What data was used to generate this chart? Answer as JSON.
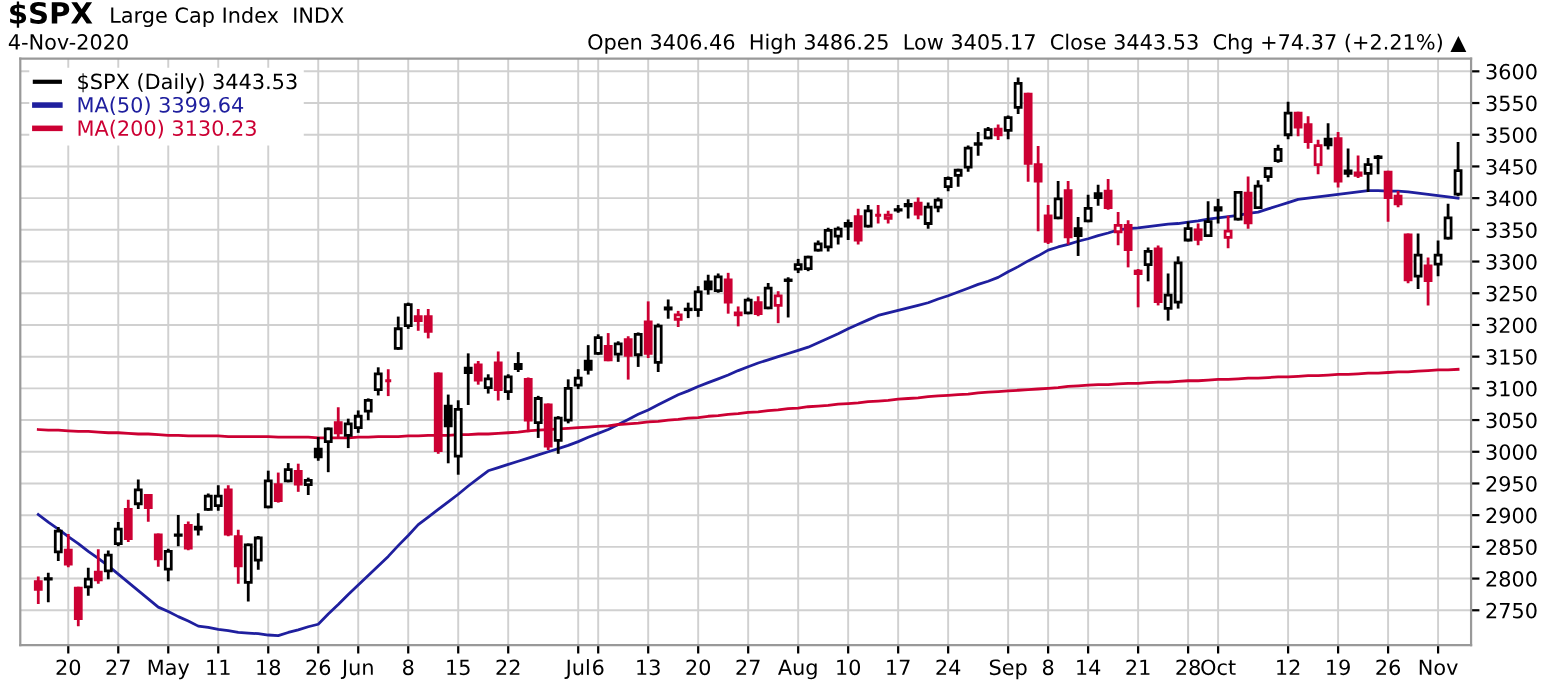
{
  "chart_data": {
    "type": "candlestick",
    "title": "$SPX",
    "subtitle": "Large Cap Index  INDX",
    "annotations": [
      "4-Nov-2020",
      "Open 3406.46  High 3486.25  Low 3405.17  Close 3443.53  Chg +74.37 (+2.21%) ▲"
    ],
    "ylim": [
      2695,
      3620
    ],
    "yticks": [
      2750,
      2800,
      2850,
      2900,
      2950,
      3000,
      3050,
      3100,
      3150,
      3200,
      3250,
      3300,
      3350,
      3400,
      3450,
      3500,
      3550,
      3600
    ],
    "categories": [
      null,
      null,
      null,
      "20",
      null,
      null,
      null,
      null,
      "27",
      null,
      null,
      null,
      null,
      "May",
      null,
      null,
      null,
      null,
      "11",
      null,
      null,
      null,
      null,
      "18",
      null,
      null,
      null,
      null,
      "26",
      null,
      null,
      null,
      "Jun",
      null,
      null,
      null,
      null,
      "8",
      null,
      null,
      null,
      null,
      "15",
      null,
      null,
      null,
      null,
      "22",
      null,
      null,
      null,
      null,
      null,
      null,
      "Jul",
      null,
      "6",
      null,
      null,
      null,
      null,
      "13",
      null,
      null,
      null,
      null,
      "20",
      null,
      null,
      null,
      null,
      "27",
      null,
      null,
      null,
      null,
      "Aug",
      null,
      null,
      null,
      null,
      "10",
      null,
      null,
      null,
      null,
      "17",
      null,
      null,
      null,
      null,
      "24",
      null,
      null,
      null,
      null,
      null,
      "Sep",
      null,
      null,
      null,
      "8",
      null,
      null,
      null,
      "14",
      null,
      null,
      null,
      null,
      "21",
      null,
      null,
      null,
      null,
      "28",
      null,
      null,
      "Oct",
      null,
      null,
      null,
      null,
      null,
      null,
      "12",
      null,
      null,
      null,
      null,
      "19",
      null,
      null,
      null,
      null,
      "26",
      null,
      null,
      null,
      null,
      "Nov",
      null,
      null
    ],
    "grid": true,
    "legend": "top left",
    "series": [
      {
        "name": "$SPX (Daily) 3443.53",
        "color": "#000000",
        "ohlc": [
          [
            2795,
            2801,
            2762,
            2783
          ],
          [
            2799,
            2807,
            2765,
            2800
          ],
          [
            2842,
            2879,
            2830,
            2875
          ],
          [
            2845,
            2868,
            2820,
            2823
          ],
          [
            2785,
            2785,
            2727,
            2737
          ],
          [
            2787,
            2815,
            2775,
            2799
          ],
          [
            2810,
            2844,
            2794,
            2798
          ],
          [
            2812,
            2842,
            2801,
            2837
          ],
          [
            2855,
            2887,
            2853,
            2878
          ],
          [
            2909,
            2922,
            2860,
            2863
          ],
          [
            2918,
            2954,
            2912,
            2940
          ],
          [
            2931,
            2931,
            2892,
            2912
          ],
          [
            2869,
            2869,
            2821,
            2831
          ],
          [
            2815,
            2845,
            2798,
            2843
          ],
          [
            2869,
            2898,
            2853,
            2868
          ],
          [
            2884,
            2888,
            2847,
            2848
          ],
          [
            2878,
            2901,
            2870,
            2881
          ],
          [
            2909,
            2932,
            2909,
            2930
          ],
          [
            2915,
            2945,
            2909,
            2930
          ],
          [
            2940,
            2945,
            2869,
            2870
          ],
          [
            2866,
            2875,
            2794,
            2820
          ],
          [
            2794,
            2853,
            2766,
            2853
          ],
          [
            2829,
            2865,
            2816,
            2864
          ],
          [
            2913,
            2968,
            2913,
            2954
          ],
          [
            2948,
            2965,
            2922,
            2923
          ],
          [
            2954,
            2980,
            2954,
            2972
          ],
          [
            2969,
            2979,
            2939,
            2949
          ],
          [
            2948,
            2957,
            2934,
            2955
          ],
          [
            3004,
            3021,
            2988,
            2992
          ],
          [
            3016,
            3036,
            2970,
            3036
          ],
          [
            3046,
            3068,
            3024,
            3030
          ],
          [
            3026,
            3050,
            3008,
            3044
          ],
          [
            3038,
            3063,
            3032,
            3056
          ],
          [
            3064,
            3082,
            3052,
            3081
          ],
          [
            3098,
            3131,
            3091,
            3123
          ],
          [
            3112,
            3128,
            3090,
            3112
          ],
          [
            3163,
            3211,
            3163,
            3194
          ],
          [
            3199,
            3233,
            3196,
            3232
          ],
          [
            3213,
            3223,
            3193,
            3207
          ],
          [
            3213,
            3223,
            3181,
            3190
          ],
          [
            3123,
            3123,
            2999,
            3002
          ],
          [
            3072,
            3088,
            2984,
            3041
          ],
          [
            2993,
            3079,
            2966,
            3067
          ],
          [
            3132,
            3153,
            3076,
            3125
          ],
          [
            3137,
            3141,
            3108,
            3113
          ],
          [
            3101,
            3120,
            3094,
            3115
          ],
          [
            3140,
            3156,
            3083,
            3098
          ],
          [
            3095,
            3120,
            3084,
            3118
          ],
          [
            3138,
            3155,
            3128,
            3131
          ],
          [
            3114,
            3115,
            3033,
            3050
          ],
          [
            3046,
            3086,
            3024,
            3084
          ],
          [
            3074,
            3074,
            3005,
            3009
          ],
          [
            3018,
            3054,
            2999,
            3053
          ],
          [
            3050,
            3112,
            3047,
            3100
          ],
          [
            3105,
            3128,
            3101,
            3116
          ],
          [
            3143,
            3166,
            3124,
            3130
          ],
          [
            3155,
            3183,
            3155,
            3180
          ],
          [
            3166,
            3185,
            3145,
            3145
          ],
          [
            3154,
            3172,
            3144,
            3170
          ],
          [
            3177,
            3180,
            3116,
            3152
          ],
          [
            3153,
            3186,
            3136,
            3185
          ],
          [
            3205,
            3235,
            3150,
            3155
          ],
          [
            3141,
            3200,
            3128,
            3198
          ],
          [
            3225,
            3238,
            3212,
            3227
          ],
          [
            3209,
            3220,
            3199,
            3216
          ],
          [
            3224,
            3233,
            3213,
            3225
          ],
          [
            3224,
            3259,
            3215,
            3252
          ],
          [
            3268,
            3277,
            3250,
            3257
          ],
          [
            3254,
            3279,
            3253,
            3276
          ],
          [
            3271,
            3280,
            3220,
            3236
          ],
          [
            3219,
            3227,
            3200,
            3216
          ],
          [
            3219,
            3241,
            3219,
            3239
          ],
          [
            3235,
            3243,
            3216,
            3218
          ],
          [
            3227,
            3264,
            3227,
            3258
          ],
          [
            3231,
            3251,
            3205,
            3246
          ],
          [
            3270,
            3273,
            3214,
            3271
          ],
          [
            3288,
            3302,
            3284,
            3295
          ],
          [
            3289,
            3307,
            3287,
            3307
          ],
          [
            3318,
            3331,
            3318,
            3328
          ],
          [
            3323,
            3351,
            3318,
            3349
          ],
          [
            3340,
            3353,
            3329,
            3351
          ],
          [
            3356,
            3364,
            3336,
            3360
          ],
          [
            3371,
            3381,
            3329,
            3334
          ],
          [
            3356,
            3387,
            3356,
            3380
          ],
          [
            3373,
            3387,
            3362,
            3373
          ],
          [
            3368,
            3378,
            3362,
            3373
          ],
          [
            3381,
            3387,
            3379,
            3382
          ],
          [
            3388,
            3396,
            3370,
            3390
          ],
          [
            3392,
            3399,
            3369,
            3375
          ],
          [
            3360,
            3391,
            3354,
            3386
          ],
          [
            3386,
            3399,
            3380,
            3397
          ],
          [
            3418,
            3432,
            3413,
            3431
          ],
          [
            3436,
            3444,
            3420,
            3444
          ],
          [
            3449,
            3481,
            3444,
            3479
          ],
          [
            3486,
            3502,
            3469,
            3485
          ],
          [
            3495,
            3510,
            3495,
            3508
          ],
          [
            3509,
            3514,
            3494,
            3500
          ],
          [
            3507,
            3528,
            3495,
            3527
          ],
          [
            3543,
            3588,
            3535,
            3581
          ],
          [
            3564,
            3564,
            3428,
            3455
          ],
          [
            3453,
            3480,
            3350,
            3427
          ],
          [
            3372,
            3387,
            3330,
            3332
          ],
          [
            3369,
            3425,
            3369,
            3399
          ],
          [
            3412,
            3425,
            3329,
            3339
          ],
          [
            3352,
            3368,
            3311,
            3341
          ],
          [
            3364,
            3403,
            3364,
            3384
          ],
          [
            3407,
            3419,
            3390,
            3401
          ],
          [
            3411,
            3428,
            3384,
            3385
          ],
          [
            3347,
            3376,
            3328,
            3357
          ],
          [
            3357,
            3363,
            3293,
            3319
          ],
          [
            3285,
            3286,
            3230,
            3281
          ],
          [
            3295,
            3320,
            3271,
            3316
          ],
          [
            3320,
            3323,
            3233,
            3237
          ],
          [
            3226,
            3279,
            3209,
            3247
          ],
          [
            3236,
            3306,
            3228,
            3298
          ],
          [
            3334,
            3361,
            3334,
            3352
          ],
          [
            3350,
            3358,
            3328,
            3335
          ],
          [
            3341,
            3393,
            3341,
            3363
          ],
          [
            3385,
            3397,
            3362,
            3381
          ],
          [
            3338,
            3370,
            3323,
            3348
          ],
          [
            3367,
            3409,
            3367,
            3409
          ],
          [
            3408,
            3432,
            3354,
            3361
          ],
          [
            3385,
            3426,
            3385,
            3419
          ],
          [
            3434,
            3447,
            3428,
            3447
          ],
          [
            3459,
            3482,
            3458,
            3477
          ],
          [
            3500,
            3550,
            3495,
            3534
          ],
          [
            3534,
            3534,
            3500,
            3512
          ],
          [
            3516,
            3527,
            3480,
            3489
          ],
          [
            3453,
            3490,
            3440,
            3483
          ],
          [
            3493,
            3516,
            3479,
            3484
          ],
          [
            3494,
            3502,
            3419,
            3427
          ],
          [
            3439,
            3476,
            3435,
            3443
          ],
          [
            3440,
            3465,
            3434,
            3436
          ],
          [
            3439,
            3461,
            3412,
            3453
          ],
          [
            3464,
            3466,
            3440,
            3465
          ],
          [
            3441,
            3441,
            3365,
            3401
          ],
          [
            3403,
            3409,
            3388,
            3391
          ],
          [
            3342,
            3342,
            3268,
            3271
          ],
          [
            3277,
            3342,
            3259,
            3310
          ],
          [
            3293,
            3304,
            3233,
            3270
          ],
          [
            3296,
            3331,
            3279,
            3310
          ],
          [
            3337,
            3389,
            3337,
            3369
          ],
          [
            3406.46,
            3486.25,
            3405.17,
            3443.53
          ]
        ],
        "colors": [
          "#cc0033",
          "#000000",
          "#000000",
          "#cc0033",
          "#cc0033",
          "#000000",
          "#cc0033",
          "#000000",
          "#000000",
          "#cc0033",
          "#000000",
          "#cc0033",
          "#cc0033",
          "#000000",
          "#000000",
          "#cc0033",
          "#000000",
          "#000000",
          "#000000",
          "#cc0033",
          "#cc0033",
          "#000000",
          "#000000",
          "#000000",
          "#cc0033",
          "#000000",
          "#cc0033",
          "#000000",
          "#000000",
          "#000000",
          "#cc0033",
          "#000000",
          "#000000",
          "#000000",
          "#000000",
          "#cc0033",
          "#000000",
          "#000000",
          "#cc0033",
          "#cc0033",
          "#cc0033",
          "#000000",
          "#000000",
          "#000000",
          "#cc0033",
          "#000000",
          "#cc0033",
          "#000000",
          "#000000",
          "#cc0033",
          "#000000",
          "#cc0033",
          "#000000",
          "#000000",
          "#000000",
          "#000000",
          "#000000",
          "#cc0033",
          "#000000",
          "#cc0033",
          "#000000",
          "#cc0033",
          "#000000",
          "#000000",
          "#cc0033",
          "#000000",
          "#000000",
          "#000000",
          "#000000",
          "#cc0033",
          "#cc0033",
          "#000000",
          "#cc0033",
          "#000000",
          "#cc0033",
          "#000000",
          "#000000",
          "#000000",
          "#000000",
          "#000000",
          "#000000",
          "#000000",
          "#cc0033",
          "#000000",
          "#cc0033",
          "#cc0033",
          "#000000",
          "#000000",
          "#cc0033",
          "#000000",
          "#000000",
          "#000000",
          "#000000",
          "#000000",
          "#000000",
          "#000000",
          "#cc0033",
          "#000000",
          "#000000",
          "#cc0033",
          "#cc0033",
          "#cc0033",
          "#000000",
          "#cc0033",
          "#000000",
          "#000000",
          "#000000",
          "#cc0033",
          "#cc0033",
          "#cc0033",
          "#cc0033",
          "#000000",
          "#cc0033",
          "#000000",
          "#000000",
          "#000000",
          "#cc0033",
          "#000000",
          "#000000",
          "#cc0033",
          "#000000",
          "#cc0033",
          "#000000",
          "#000000",
          "#000000",
          "#000000",
          "#cc0033",
          "#cc0033",
          "#cc0033",
          "#000000",
          "#cc0033",
          "#000000",
          "#cc0033",
          "#000000",
          "#000000",
          "#cc0033",
          "#cc0033",
          "#cc0033",
          "#000000",
          "#cc0033",
          "#000000",
          "#000000",
          "#000000"
        ]
      },
      {
        "name": "MA(50) 3399.64",
        "type": "line",
        "color": "#1f1f9e",
        "values": [
          2901,
          2889,
          2878,
          2866,
          2855,
          2843,
          2832,
          2820,
          2807,
          2794,
          2781,
          2768,
          2755,
          2748,
          2740,
          2733,
          2725,
          2723,
          2720,
          2718,
          2715,
          2714,
          2713,
          2711,
          2710,
          2715,
          2719,
          2724,
          2728,
          2744,
          2759,
          2775,
          2790,
          2805,
          2820,
          2835,
          2852,
          2868,
          2885,
          2897,
          2909,
          2921,
          2933,
          2946,
          2958,
          2970,
          2975,
          2980,
          2985,
          2990,
          2995,
          3000,
          3005,
          3010,
          3016,
          3023,
          3029,
          3035,
          3043,
          3051,
          3059,
          3066,
          3074,
          3082,
          3090,
          3096,
          3103,
          3109,
          3115,
          3121,
          3128,
          3134,
          3140,
          3145,
          3150,
          3155,
          3160,
          3165,
          3172,
          3179,
          3186,
          3194,
          3201,
          3208,
          3215,
          3219,
          3223,
          3227,
          3231,
          3235,
          3241,
          3246,
          3252,
          3258,
          3264,
          3269,
          3275,
          3284,
          3292,
          3301,
          3309,
          3318,
          3323,
          3327,
          3332,
          3336,
          3341,
          3345,
          3350,
          3352,
          3353,
          3355,
          3357,
          3359,
          3360,
          3362,
          3364,
          3367,
          3369,
          3371,
          3373,
          3376,
          3378,
          3383,
          3388,
          3393,
          3398,
          3400,
          3402,
          3404,
          3406,
          3408,
          3410,
          3412,
          3412,
          3411,
          3411,
          3410,
          3408,
          3406,
          3404,
          3402,
          3400
        ]
      },
      {
        "name": "MA(200) 3130.23",
        "type": "line",
        "color": "#cc0033",
        "values": [
          3035,
          3034,
          3034,
          3033,
          3032,
          3032,
          3031,
          3030,
          3030,
          3029,
          3028,
          3028,
          3027,
          3026,
          3026,
          3025,
          3025,
          3025,
          3025,
          3024,
          3024,
          3024,
          3024,
          3024,
          3023,
          3023,
          3023,
          3023,
          3022,
          3022,
          3022,
          3022,
          3023,
          3023,
          3024,
          3024,
          3024,
          3025,
          3025,
          3026,
          3026,
          3026,
          3027,
          3027,
          3028,
          3028,
          3029,
          3030,
          3031,
          3033,
          3034,
          3035,
          3036,
          3037,
          3038,
          3039,
          3040,
          3041,
          3043,
          3044,
          3045,
          3047,
          3048,
          3050,
          3051,
          3053,
          3054,
          3056,
          3057,
          3059,
          3060,
          3062,
          3063,
          3065,
          3066,
          3068,
          3069,
          3071,
          3072,
          3073,
          3075,
          3076,
          3077,
          3079,
          3080,
          3081,
          3083,
          3084,
          3085,
          3087,
          3088,
          3089,
          3090,
          3091,
          3093,
          3094,
          3095,
          3096,
          3097,
          3098,
          3099,
          3100,
          3101,
          3103,
          3104,
          3105,
          3106,
          3106,
          3107,
          3108,
          3108,
          3109,
          3110,
          3110,
          3111,
          3112,
          3112,
          3113,
          3114,
          3114,
          3115,
          3116,
          3116,
          3117,
          3118,
          3118,
          3119,
          3120,
          3120,
          3121,
          3122,
          3122,
          3123,
          3124,
          3124,
          3125,
          3126,
          3126,
          3127,
          3128,
          3129,
          3129,
          3130
        ]
      }
    ]
  }
}
